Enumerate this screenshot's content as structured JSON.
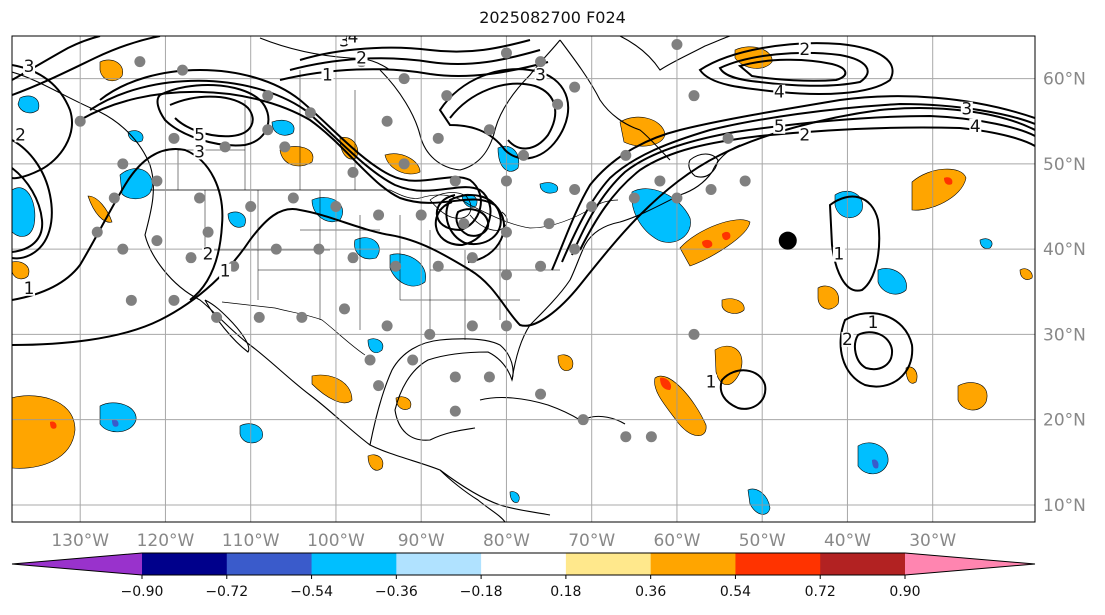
{
  "title": "2025082700 F024",
  "map": {
    "lon_range": [
      -138,
      -18
    ],
    "lat_range": [
      8,
      65
    ],
    "lat_labels": [
      "10°N",
      "20°N",
      "30°N",
      "40°N",
      "50°N",
      "60°N"
    ],
    "lat_values": [
      10,
      20,
      30,
      40,
      50,
      60
    ],
    "lon_labels": [
      "130°W",
      "120°W",
      "110°W",
      "100°W",
      "90°W",
      "80°W",
      "70°W",
      "60°W",
      "50°W",
      "40°W",
      "30°W"
    ],
    "lon_values": [
      -130,
      -120,
      -110,
      -100,
      -90,
      -80,
      -70,
      -60,
      -50,
      -40,
      -30
    ],
    "contour_labels": [
      {
        "text": "1",
        "lon": -101,
        "lat": 60
      },
      {
        "text": "2",
        "lon": -97,
        "lat": 62
      },
      {
        "text": "3",
        "lon": -99,
        "lat": 64
      },
      {
        "text": "4",
        "lon": -98,
        "lat": 64.5
      },
      {
        "text": "5",
        "lon": -116,
        "lat": 53
      },
      {
        "text": "3",
        "lon": -116,
        "lat": 51
      },
      {
        "text": "2",
        "lon": -115,
        "lat": 39
      },
      {
        "text": "1",
        "lon": -113,
        "lat": 37
      },
      {
        "text": "1",
        "lon": -136,
        "lat": 35
      },
      {
        "text": "3",
        "lon": -136,
        "lat": 61
      },
      {
        "text": "2",
        "lon": -137,
        "lat": 53
      },
      {
        "text": "3",
        "lon": -76,
        "lat": 60
      },
      {
        "text": "5",
        "lon": -48,
        "lat": 54
      },
      {
        "text": "2",
        "lon": -45,
        "lat": 53
      },
      {
        "text": "3",
        "lon": -26,
        "lat": 56
      },
      {
        "text": "4",
        "lon": -25,
        "lat": 54
      },
      {
        "text": "2",
        "lon": -45,
        "lat": 63
      },
      {
        "text": "4",
        "lon": -48,
        "lat": 58
      },
      {
        "text": "1",
        "lon": -41,
        "lat": 39
      },
      {
        "text": "1",
        "lon": -37,
        "lat": 31
      },
      {
        "text": "2",
        "lon": -40,
        "lat": 29
      },
      {
        "text": "1",
        "lon": -56,
        "lat": 24
      }
    ],
    "stations": [
      [
        -123,
        62
      ],
      [
        -118,
        61
      ],
      [
        -108,
        58
      ],
      [
        -97,
        62
      ],
      [
        -92,
        60
      ],
      [
        -87,
        58
      ],
      [
        -80,
        63
      ],
      [
        -76,
        62
      ],
      [
        -72,
        59
      ],
      [
        -60,
        64
      ],
      [
        -58,
        58
      ],
      [
        -54,
        53
      ],
      [
        -66,
        51
      ],
      [
        -74,
        57
      ],
      [
        -78,
        51
      ],
      [
        -82,
        54
      ],
      [
        -88,
        53
      ],
      [
        -94,
        55
      ],
      [
        -103,
        56
      ],
      [
        -108,
        54
      ],
      [
        -113,
        52
      ],
      [
        -119,
        53
      ],
      [
        -125,
        50
      ],
      [
        -130,
        55
      ],
      [
        -126,
        46
      ],
      [
        -121,
        48
      ],
      [
        -116,
        46
      ],
      [
        -110,
        45
      ],
      [
        -105,
        46
      ],
      [
        -100,
        45
      ],
      [
        -95,
        44
      ],
      [
        -90,
        44
      ],
      [
        -85,
        43
      ],
      [
        -80,
        42
      ],
      [
        -75,
        43
      ],
      [
        -70,
        45
      ],
      [
        -65,
        46
      ],
      [
        -60,
        46
      ],
      [
        -56,
        47
      ],
      [
        -52,
        48
      ],
      [
        -125,
        40
      ],
      [
        -121,
        41
      ],
      [
        -117,
        39
      ],
      [
        -112,
        38
      ],
      [
        -107,
        40
      ],
      [
        -102,
        40
      ],
      [
        -98,
        39
      ],
      [
        -93,
        38
      ],
      [
        -88,
        38
      ],
      [
        -84,
        39
      ],
      [
        -80,
        37
      ],
      [
        -76,
        38
      ],
      [
        -72,
        40
      ],
      [
        -124,
        34
      ],
      [
        -119,
        34
      ],
      [
        -114,
        32
      ],
      [
        -109,
        32
      ],
      [
        -104,
        32
      ],
      [
        -99,
        33
      ],
      [
        -94,
        31
      ],
      [
        -89,
        30
      ],
      [
        -84,
        31
      ],
      [
        -80,
        31
      ],
      [
        -96,
        27
      ],
      [
        -91,
        27
      ],
      [
        -86,
        25
      ],
      [
        -82,
        25
      ],
      [
        -95,
        24
      ],
      [
        -86,
        21
      ],
      [
        -76,
        23
      ],
      [
        -71,
        20
      ],
      [
        -66,
        18
      ],
      [
        -63,
        18
      ],
      [
        -58,
        30
      ],
      [
        -106,
        52
      ],
      [
        -98,
        49
      ],
      [
        -92,
        50
      ],
      [
        -86,
        48
      ],
      [
        -80,
        48
      ],
      [
        -72,
        47
      ],
      [
        -62,
        48
      ],
      [
        -128,
        42
      ],
      [
        -115,
        42
      ]
    ],
    "buoy": {
      "lon": -47,
      "lat": 41
    }
  },
  "colorbar": {
    "labels": [
      "−0.90",
      "−0.72",
      "−0.54",
      "−0.36",
      "−0.18",
      "0.18",
      "0.36",
      "0.54",
      "0.72",
      "0.90"
    ],
    "colors": [
      "#9932CC",
      "#00008B",
      "#3A5BCB",
      "#00BFFF",
      "#B0E2FF",
      "#FFFFFF",
      "#FFE88C",
      "#FFA500",
      "#FF3300",
      "#B22222",
      "#FF85B0"
    ]
  }
}
